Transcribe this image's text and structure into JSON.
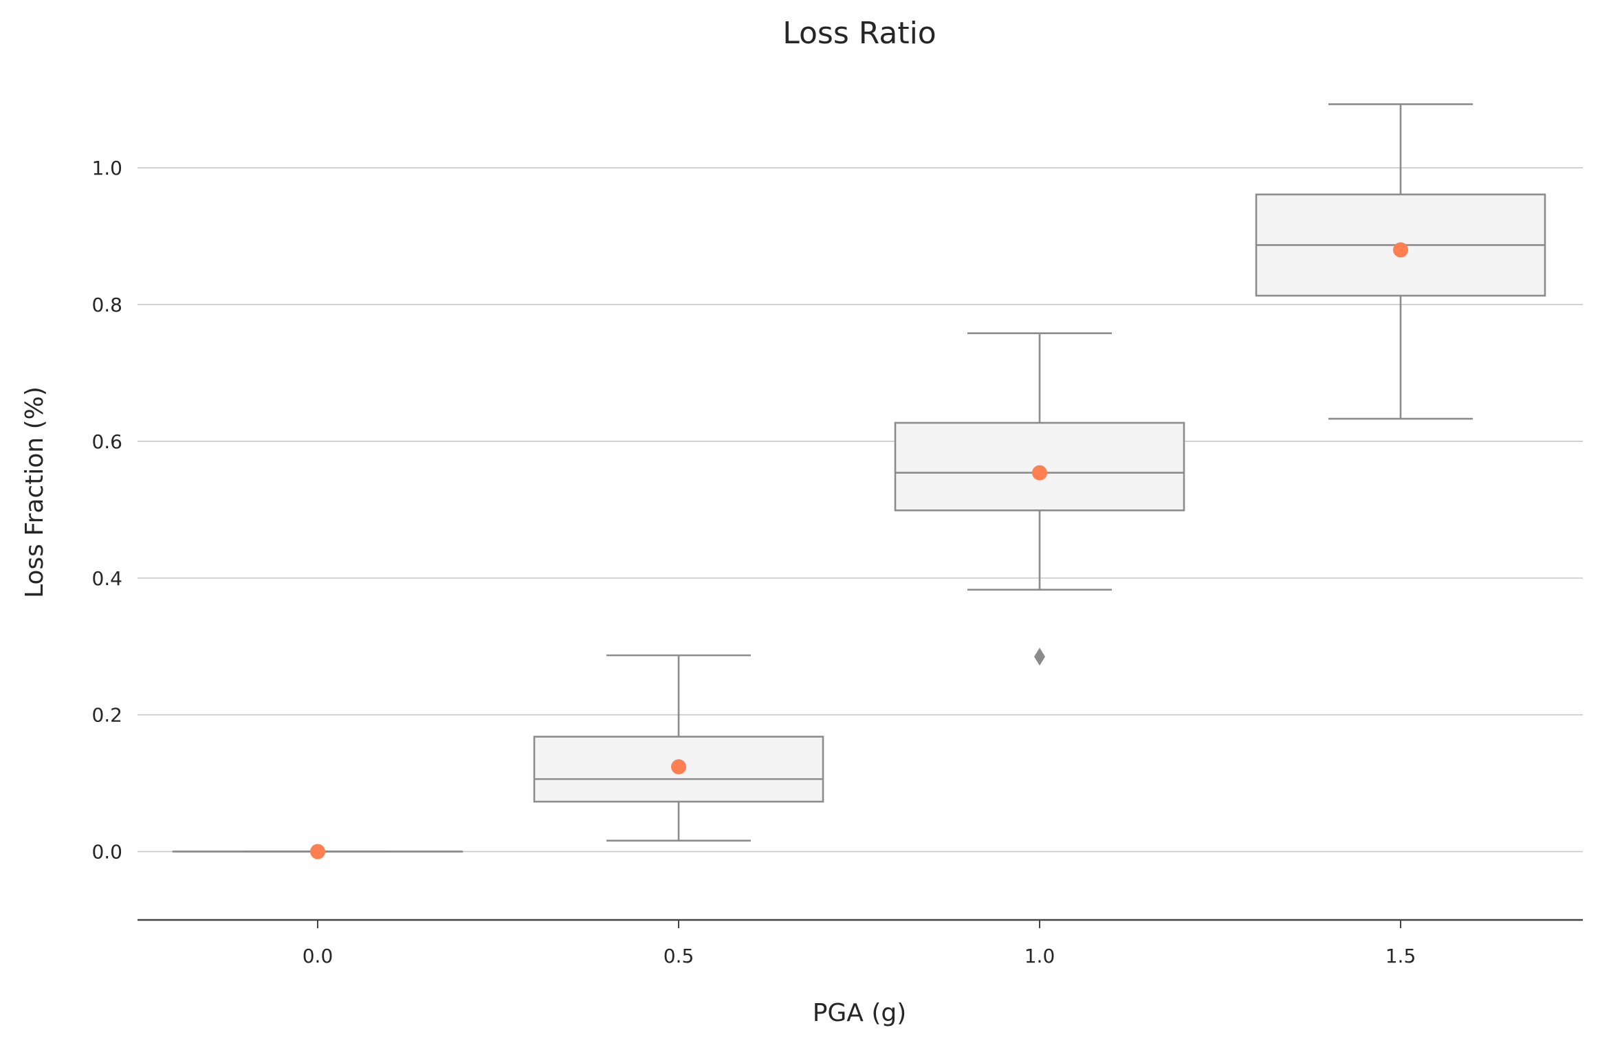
{
  "chart_data": {
    "type": "box",
    "title": "Loss Ratio",
    "xlabel": "PGA (g)",
    "ylabel": "Loss Fraction (%)",
    "categories": [
      "0.0",
      "0.5",
      "1.0",
      "1.5"
    ],
    "ylim": [
      -0.1,
      1.17
    ],
    "yticks": [
      "0.0",
      "0.2",
      "0.4",
      "0.6",
      "0.8",
      "1.0"
    ],
    "grid": "horizontal",
    "legend": "none",
    "box_fill": "#f4f4f4",
    "line_color": "#8c8c8c",
    "mean_color": "#ff7f50",
    "grid_color": "#c8c8c8",
    "axis_color": "#444444",
    "boxes": [
      {
        "x": "0.0",
        "whisker_low": 0.0,
        "q1": 0.0,
        "median": 0.0,
        "q3": 0.0,
        "whisker_high": 0.0,
        "mean": 0.0,
        "outliers": []
      },
      {
        "x": "0.5",
        "whisker_low": 0.016,
        "q1": 0.073,
        "median": 0.106,
        "q3": 0.168,
        "whisker_high": 0.287,
        "mean": 0.124,
        "outliers": []
      },
      {
        "x": "1.0",
        "whisker_low": 0.383,
        "q1": 0.499,
        "median": 0.554,
        "q3": 0.627,
        "whisker_high": 0.758,
        "mean": 0.554,
        "outliers": [
          0.285
        ]
      },
      {
        "x": "1.5",
        "whisker_low": 0.633,
        "q1": 0.813,
        "median": 0.887,
        "q3": 0.961,
        "whisker_high": 1.093,
        "mean": 0.88,
        "outliers": []
      }
    ]
  }
}
